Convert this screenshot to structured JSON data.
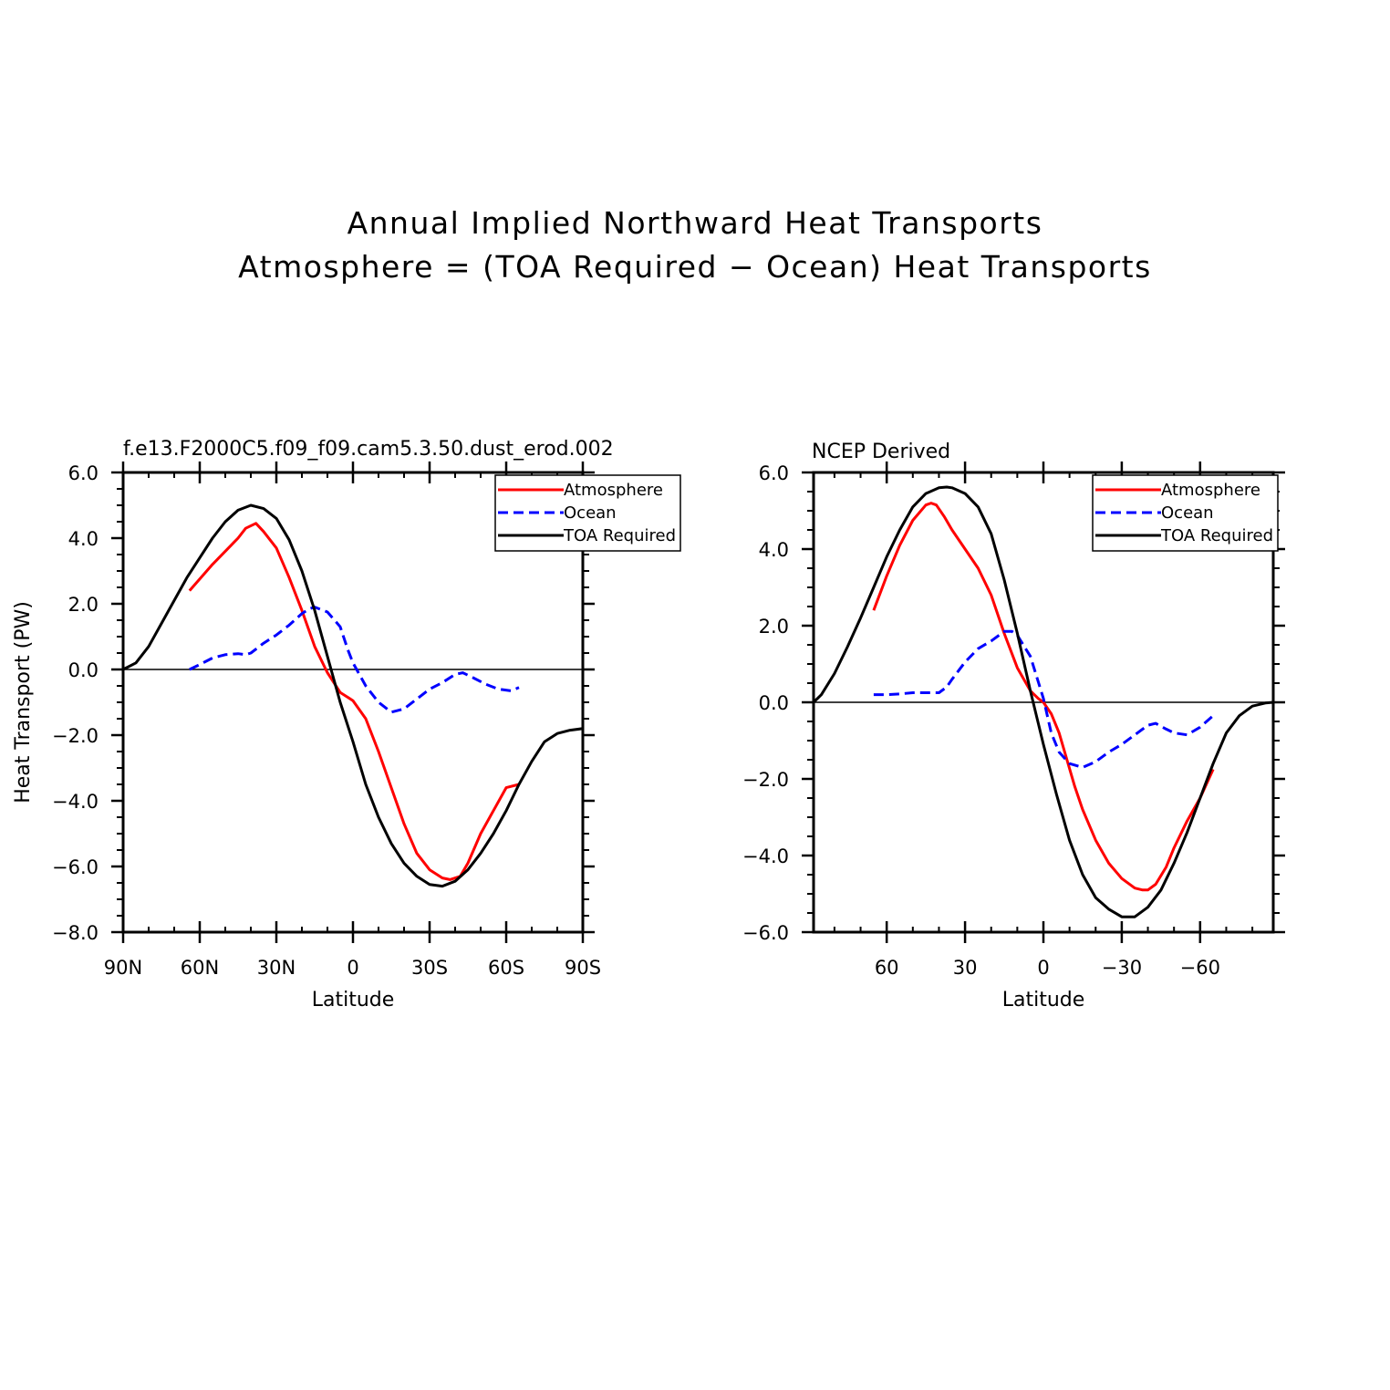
{
  "figure_title": {
    "line1": "Annual Implied Northward Heat Transports",
    "line2": "Atmosphere = (TOA Required − Ocean) Heat Transports"
  },
  "chart_data": [
    {
      "type": "line",
      "title": "f.e13.F2000C5.f09_f09.cam5.3.50.dust_erod.002",
      "xlabel": "Latitude",
      "ylabel": "Heat Transport (PW)",
      "xlim": [
        90,
        -90
      ],
      "ylim": [
        -8,
        6
      ],
      "xticks": [
        90,
        60,
        30,
        0,
        -30,
        -60,
        -90
      ],
      "xtick_labels": [
        "90N",
        "60N",
        "30N",
        "0",
        "30S",
        "60S",
        "90S"
      ],
      "yticks": [
        6,
        4,
        2,
        0,
        -2,
        -4,
        -6,
        -8
      ],
      "ytick_labels": [
        "6.0",
        "4.0",
        "2.0",
        "0.0",
        "−2.0",
        "−4.0",
        "−6.0",
        "−8.0"
      ],
      "zero_line": true,
      "legend": {
        "position": "top-right",
        "entries": [
          "Atmosphere",
          "Ocean",
          "TOA Required"
        ]
      },
      "series": [
        {
          "name": "Atmosphere",
          "color": "#ff0000",
          "dash": "solid",
          "x": [
            64,
            55,
            45,
            42,
            38,
            35,
            30,
            25,
            20,
            15,
            10,
            5,
            0,
            -5,
            -10,
            -15,
            -20,
            -25,
            -30,
            -35,
            -38,
            -42,
            -45,
            -50,
            -55,
            -60,
            -65
          ],
          "y": [
            2.4,
            3.2,
            4.0,
            4.3,
            4.45,
            4.2,
            3.7,
            2.8,
            1.8,
            0.7,
            -0.1,
            -0.7,
            -0.95,
            -1.5,
            -2.5,
            -3.6,
            -4.7,
            -5.6,
            -6.1,
            -6.35,
            -6.4,
            -6.3,
            -5.9,
            -5.0,
            -4.3,
            -3.6,
            -3.5
          ]
        },
        {
          "name": "Ocean",
          "color": "#0000ff",
          "dash": "dashed",
          "x": [
            64,
            60,
            55,
            50,
            45,
            42,
            40,
            35,
            30,
            25,
            20,
            17,
            15,
            10,
            5,
            2,
            0,
            -5,
            -10,
            -15,
            -20,
            -25,
            -30,
            -35,
            -40,
            -43,
            -47,
            -52,
            -57,
            -62,
            -65
          ],
          "y": [
            0.0,
            0.15,
            0.35,
            0.45,
            0.48,
            0.45,
            0.5,
            0.8,
            1.05,
            1.35,
            1.7,
            1.85,
            1.9,
            1.75,
            1.3,
            0.6,
            0.2,
            -0.5,
            -1.0,
            -1.3,
            -1.2,
            -0.9,
            -0.6,
            -0.4,
            -0.15,
            -0.1,
            -0.25,
            -0.45,
            -0.6,
            -0.65,
            -0.55
          ]
        },
        {
          "name": "TOA Required",
          "color": "#000000",
          "dash": "solid",
          "x": [
            90,
            85,
            80,
            75,
            70,
            65,
            60,
            55,
            50,
            45,
            40,
            35,
            30,
            25,
            20,
            15,
            10,
            5,
            0,
            -5,
            -10,
            -15,
            -20,
            -25,
            -30,
            -35,
            -40,
            -45,
            -50,
            -55,
            -60,
            -65,
            -70,
            -75,
            -80,
            -85,
            -90
          ],
          "y": [
            0.0,
            0.2,
            0.7,
            1.4,
            2.1,
            2.8,
            3.4,
            4.0,
            4.5,
            4.85,
            5.0,
            4.9,
            4.6,
            3.95,
            3.0,
            1.8,
            0.4,
            -1.0,
            -2.2,
            -3.5,
            -4.5,
            -5.3,
            -5.9,
            -6.3,
            -6.55,
            -6.6,
            -6.45,
            -6.1,
            -5.6,
            -5.0,
            -4.3,
            -3.5,
            -2.8,
            -2.2,
            -1.95,
            -1.85,
            -1.8
          ]
        }
      ]
    },
    {
      "type": "line",
      "title": "NCEP Derived",
      "xlabel": "Latitude",
      "ylabel": "",
      "xlim": [
        88,
        -88
      ],
      "ylim": [
        -6,
        6
      ],
      "xticks": [
        60,
        30,
        0,
        -30,
        -60
      ],
      "xtick_labels": [
        "60",
        "30",
        "0",
        "−30",
        "−60"
      ],
      "yticks": [
        6,
        4,
        2,
        0,
        -2,
        -4,
        -6
      ],
      "ytick_labels": [
        "6.0",
        "4.0",
        "2.0",
        "0.0",
        "−2.0",
        "−4.0",
        "−6.0"
      ],
      "zero_line": true,
      "legend": {
        "position": "top-right",
        "entries": [
          "Atmosphere",
          "Ocean",
          "TOA Required"
        ]
      },
      "series": [
        {
          "name": "Atmosphere",
          "color": "#ff0000",
          "dash": "solid",
          "x": [
            65,
            60,
            55,
            50,
            45,
            43,
            41,
            38,
            35,
            30,
            25,
            20,
            15,
            10,
            5,
            2,
            0,
            -3,
            -6,
            -9,
            -12,
            -15,
            -20,
            -25,
            -30,
            -35,
            -38,
            -40,
            -43,
            -47,
            -50,
            -55,
            -60,
            -65
          ],
          "y": [
            2.4,
            3.3,
            4.1,
            4.75,
            5.15,
            5.2,
            5.15,
            4.85,
            4.5,
            4.0,
            3.5,
            2.8,
            1.8,
            0.9,
            0.3,
            0.1,
            0.0,
            -0.3,
            -0.8,
            -1.5,
            -2.2,
            -2.8,
            -3.6,
            -4.2,
            -4.6,
            -4.85,
            -4.9,
            -4.9,
            -4.75,
            -4.3,
            -3.8,
            -3.1,
            -2.5,
            -1.75
          ]
        },
        {
          "name": "Ocean",
          "color": "#0000ff",
          "dash": "dashed",
          "x": [
            65,
            60,
            55,
            50,
            45,
            40,
            37,
            35,
            30,
            25,
            20,
            17,
            15,
            12,
            10,
            5,
            0,
            -3,
            -6,
            -10,
            -15,
            -20,
            -25,
            -30,
            -35,
            -40,
            -43,
            -47,
            -50,
            -55,
            -60,
            -65
          ],
          "y": [
            0.2,
            0.2,
            0.22,
            0.25,
            0.25,
            0.25,
            0.4,
            0.6,
            1.05,
            1.4,
            1.6,
            1.75,
            1.85,
            1.85,
            1.75,
            1.2,
            0.1,
            -0.8,
            -1.3,
            -1.6,
            -1.7,
            -1.55,
            -1.3,
            -1.1,
            -0.85,
            -0.6,
            -0.55,
            -0.7,
            -0.8,
            -0.85,
            -0.65,
            -0.35
          ]
        },
        {
          "name": "TOA Required",
          "color": "#000000",
          "dash": "solid",
          "x": [
            88,
            85,
            80,
            75,
            70,
            65,
            60,
            55,
            50,
            45,
            40,
            37,
            35,
            30,
            25,
            20,
            15,
            10,
            5,
            0,
            -5,
            -10,
            -15,
            -20,
            -25,
            -30,
            -35,
            -40,
            -45,
            -50,
            -55,
            -60,
            -65,
            -70,
            -75,
            -80,
            -85,
            -88
          ],
          "y": [
            0.0,
            0.2,
            0.75,
            1.45,
            2.2,
            3.0,
            3.8,
            4.5,
            5.1,
            5.45,
            5.6,
            5.62,
            5.6,
            5.45,
            5.1,
            4.4,
            3.2,
            1.8,
            0.3,
            -1.1,
            -2.4,
            -3.6,
            -4.5,
            -5.1,
            -5.4,
            -5.6,
            -5.6,
            -5.35,
            -4.9,
            -4.2,
            -3.4,
            -2.5,
            -1.6,
            -0.8,
            -0.35,
            -0.1,
            -0.02,
            0.0
          ]
        }
      ]
    }
  ]
}
